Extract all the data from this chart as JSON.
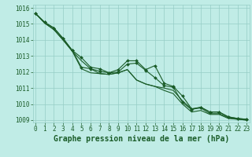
{
  "title": "Graphe pression niveau de la mer (hPa)",
  "bg_color": "#c0ece6",
  "grid_color": "#96cdc6",
  "line_color": "#1a5c28",
  "marker_color": "#1a5c28",
  "ylim": [
    1009,
    1016
  ],
  "xlim": [
    0,
    23
  ],
  "yticks": [
    1009,
    1010,
    1011,
    1012,
    1013,
    1014,
    1015,
    1016
  ],
  "xticks": [
    0,
    1,
    2,
    3,
    4,
    5,
    6,
    7,
    8,
    9,
    10,
    11,
    12,
    13,
    14,
    15,
    16,
    17,
    18,
    19,
    20,
    21,
    22,
    23
  ],
  "series_with_markers": [
    [
      1015.65,
      1015.1,
      1014.75,
      1014.1,
      1013.35,
      1012.9,
      1012.3,
      1012.2,
      1011.95,
      1012.15,
      1012.7,
      1012.7,
      1012.15,
      1012.4,
      1011.3,
      1011.1,
      1010.5,
      1009.7,
      1009.8,
      1009.5,
      1009.5,
      1009.2,
      1009.1,
      1009.05
    ],
    [
      1015.65,
      1015.1,
      1014.75,
      1014.1,
      1013.35,
      1012.3,
      1012.2,
      1012.05,
      1011.95,
      1012.0,
      1012.5,
      1012.55,
      1012.1,
      1011.65,
      1011.15,
      1011.05,
      1010.1,
      1009.65,
      1009.8,
      1009.5,
      1009.5,
      1009.2,
      1009.1,
      1009.05
    ]
  ],
  "series_plain": [
    [
      1015.65,
      1015.05,
      1014.65,
      1014.0,
      1013.3,
      1012.7,
      1012.2,
      1011.9,
      1011.85,
      1011.95,
      1012.15,
      1011.5,
      1011.25,
      1011.1,
      1011.0,
      1010.85,
      1010.2,
      1009.7,
      1009.75,
      1009.4,
      1009.4,
      1009.15,
      1009.05,
      1009.0
    ],
    [
      1015.65,
      1015.05,
      1014.65,
      1014.0,
      1013.3,
      1012.2,
      1011.95,
      1011.9,
      1011.85,
      1011.95,
      1012.15,
      1011.5,
      1011.25,
      1011.1,
      1010.85,
      1010.65,
      1010.0,
      1009.5,
      1009.6,
      1009.35,
      1009.35,
      1009.1,
      1009.05,
      1009.0
    ]
  ],
  "title_fontsize": 7,
  "tick_fontsize": 5.5,
  "tick_color": "#1a5c28",
  "axis_label_color": "#1a5c28",
  "linewidth": 0.8,
  "markersize": 2.0
}
